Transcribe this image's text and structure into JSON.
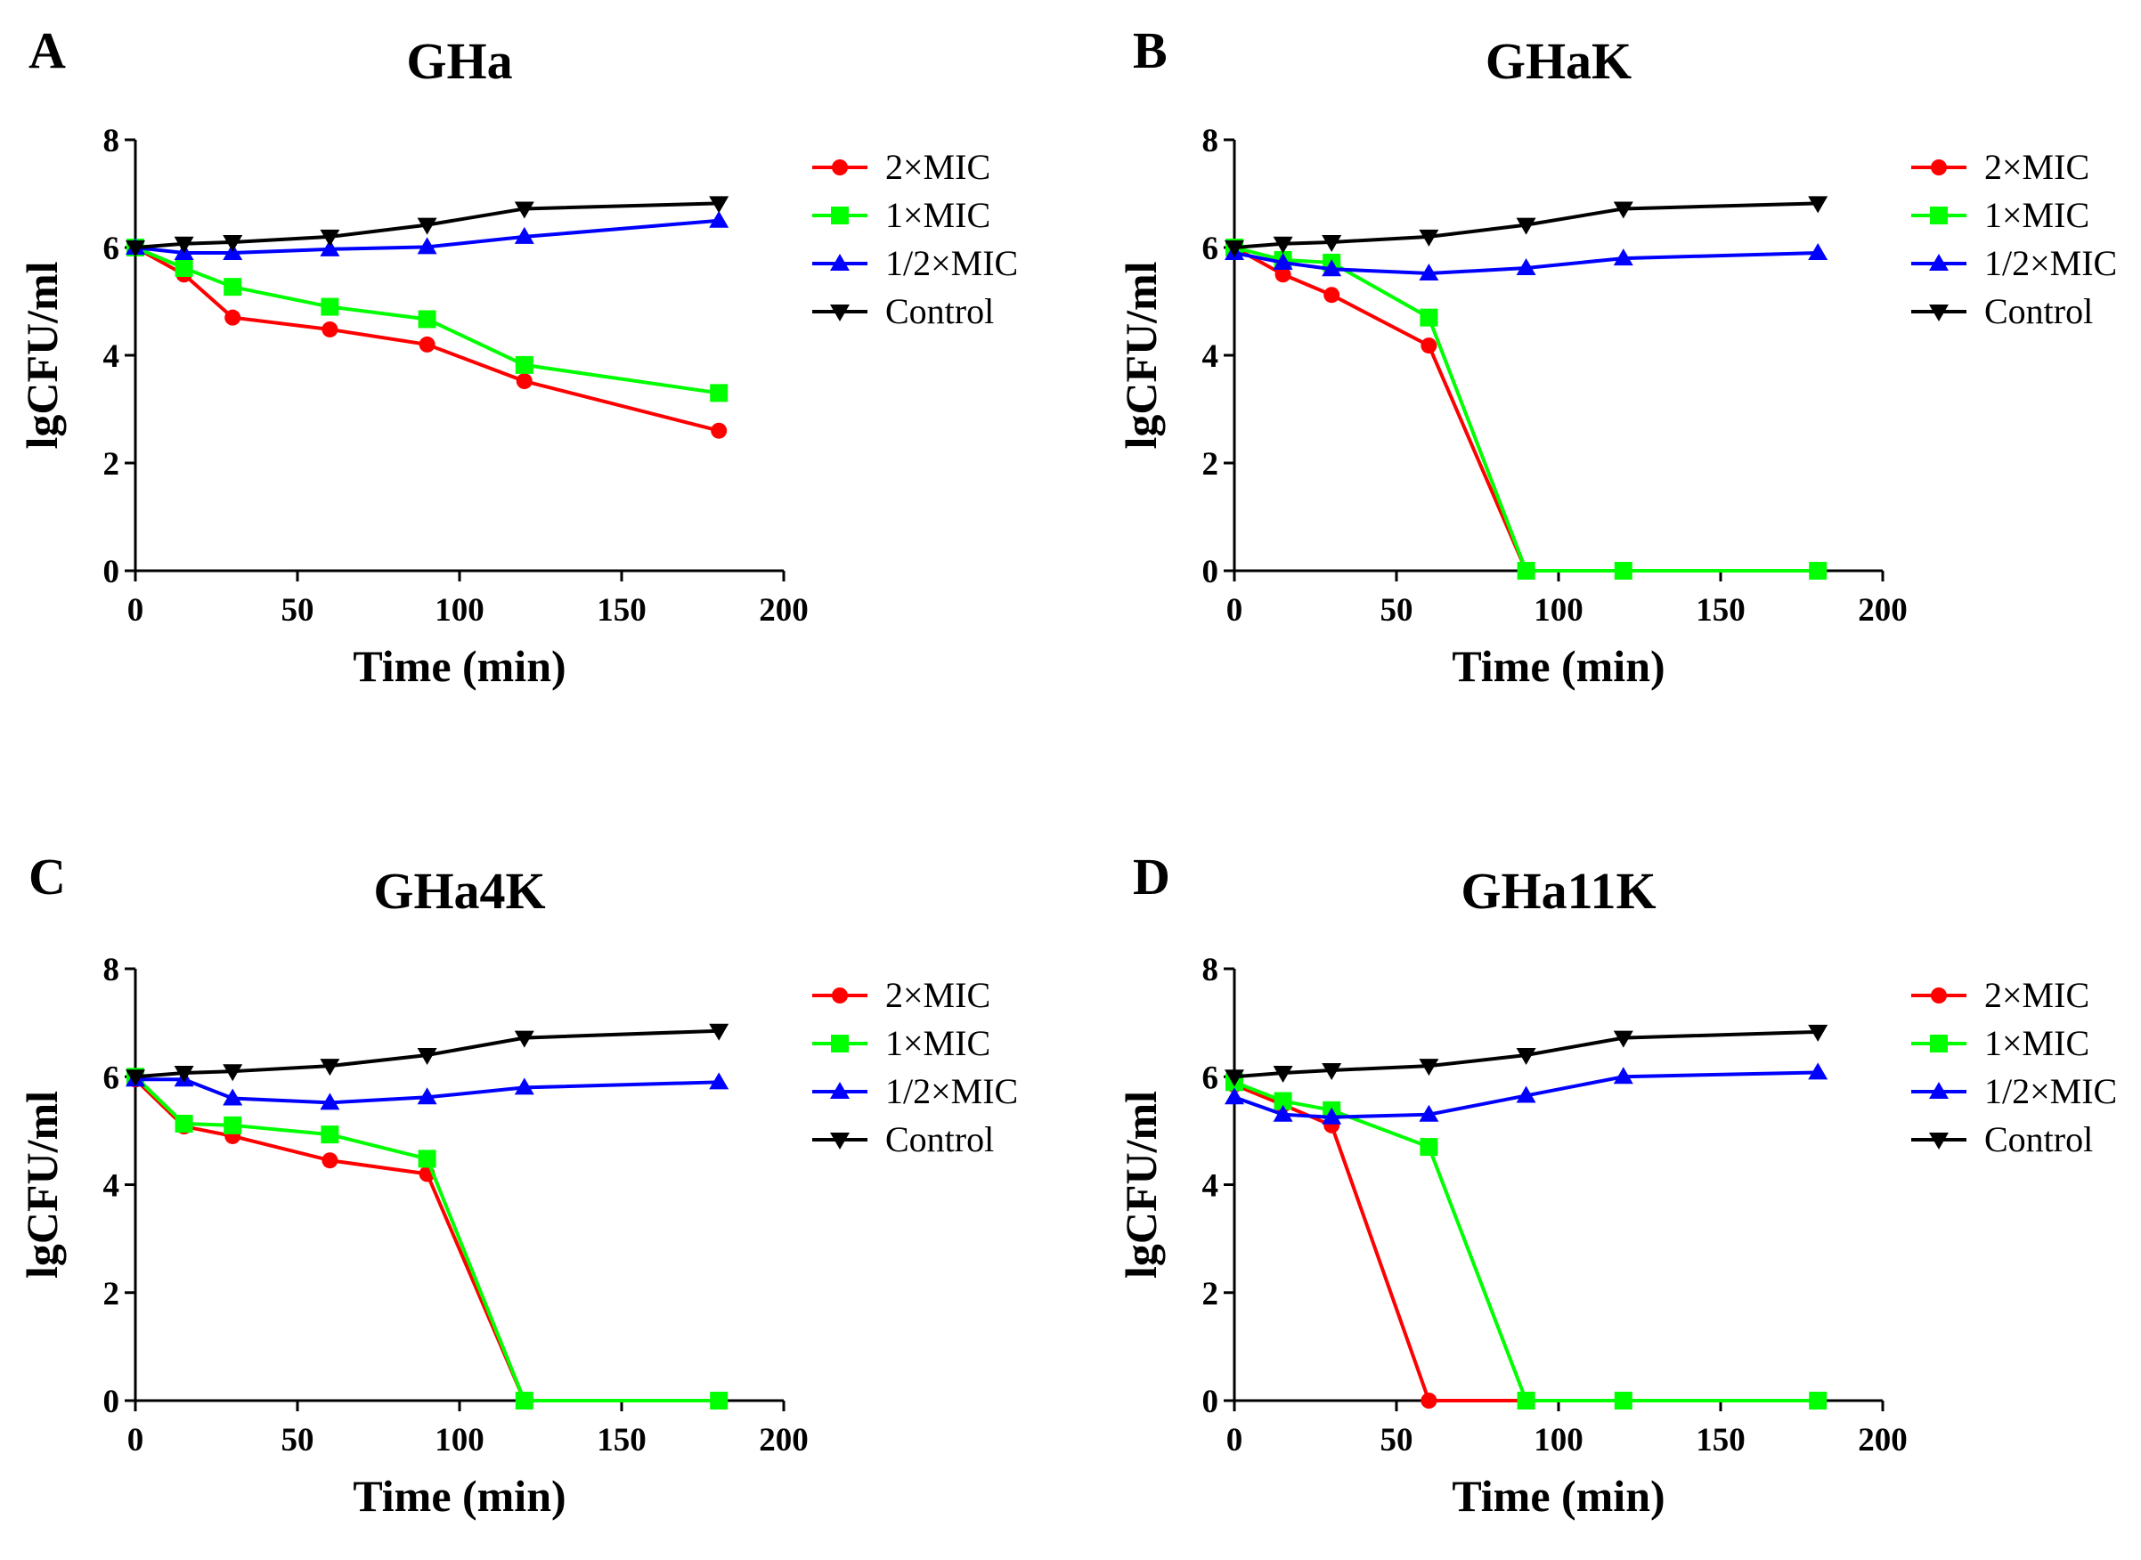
{
  "chart_data": [
    {
      "type": "line",
      "panel": "A",
      "title": "GHa",
      "xlabel": "Time (min)",
      "ylabel": "lgCFU/ml",
      "xlim": [
        0,
        200
      ],
      "ylim": [
        0,
        8
      ],
      "xticks": [
        0,
        50,
        100,
        150,
        200
      ],
      "yticks": [
        0,
        2,
        4,
        6,
        8
      ],
      "x": [
        0,
        15,
        30,
        60,
        90,
        120,
        180
      ],
      "legend_position": "top-right",
      "series": [
        {
          "name": "2×MIC",
          "color": "#ff0000",
          "marker": "circle",
          "values": [
            6.0,
            5.5,
            4.7,
            4.48,
            4.2,
            3.52,
            2.6
          ]
        },
        {
          "name": "1×MIC",
          "color": "#00ff00",
          "marker": "square",
          "values": [
            6.0,
            5.62,
            5.27,
            4.9,
            4.67,
            3.82,
            3.3
          ]
        },
        {
          "name": "1/2×MIC",
          "color": "#0000ff",
          "marker": "triangle-up",
          "values": [
            6.0,
            5.9,
            5.9,
            5.97,
            6.01,
            6.2,
            6.5
          ]
        },
        {
          "name": "Control",
          "color": "#000000",
          "marker": "triangle-down",
          "values": [
            6.0,
            6.07,
            6.1,
            6.2,
            6.42,
            6.72,
            6.82
          ]
        }
      ]
    },
    {
      "type": "line",
      "panel": "B",
      "title": "GHaK",
      "xlabel": "Time (min)",
      "ylabel": "lgCFU/ml",
      "xlim": [
        0,
        200
      ],
      "ylim": [
        0,
        8
      ],
      "xticks": [
        0,
        50,
        100,
        150,
        200
      ],
      "yticks": [
        0,
        2,
        4,
        6,
        8
      ],
      "x": [
        0,
        15,
        30,
        60,
        90,
        120,
        180
      ],
      "legend_position": "top-right",
      "series": [
        {
          "name": "2×MIC",
          "color": "#ff0000",
          "marker": "circle",
          "values": [
            6.0,
            5.5,
            5.12,
            4.18,
            0,
            0,
            0
          ]
        },
        {
          "name": "1×MIC",
          "color": "#00ff00",
          "marker": "square",
          "values": [
            6.0,
            5.77,
            5.72,
            4.7,
            0,
            0,
            0
          ]
        },
        {
          "name": "1/2×MIC",
          "color": "#0000ff",
          "marker": "triangle-up",
          "values": [
            5.9,
            5.72,
            5.6,
            5.52,
            5.62,
            5.8,
            5.9
          ]
        },
        {
          "name": "Control",
          "color": "#000000",
          "marker": "triangle-down",
          "values": [
            6.0,
            6.07,
            6.1,
            6.2,
            6.42,
            6.72,
            6.82
          ]
        }
      ]
    },
    {
      "type": "line",
      "panel": "C",
      "title": "GHa4K",
      "xlabel": "Time (min)",
      "ylabel": "lgCFU/ml",
      "xlim": [
        0,
        200
      ],
      "ylim": [
        0,
        8
      ],
      "xticks": [
        0,
        50,
        100,
        150,
        200
      ],
      "yticks": [
        0,
        2,
        4,
        6,
        8
      ],
      "x": [
        0,
        15,
        30,
        60,
        90,
        120,
        180
      ],
      "legend_position": "top-right",
      "series": [
        {
          "name": "2×MIC",
          "color": "#ff0000",
          "marker": "circle",
          "values": [
            5.95,
            5.08,
            4.9,
            4.45,
            4.2,
            0,
            0
          ]
        },
        {
          "name": "1×MIC",
          "color": "#00ff00",
          "marker": "square",
          "values": [
            6.0,
            5.13,
            5.1,
            4.93,
            4.48,
            0,
            0
          ]
        },
        {
          "name": "1/2×MIC",
          "color": "#0000ff",
          "marker": "triangle-up",
          "values": [
            5.95,
            5.95,
            5.6,
            5.52,
            5.62,
            5.8,
            5.9
          ]
        },
        {
          "name": "Control",
          "color": "#000000",
          "marker": "triangle-down",
          "values": [
            6.0,
            6.07,
            6.1,
            6.2,
            6.4,
            6.72,
            6.85
          ]
        }
      ]
    },
    {
      "type": "line",
      "panel": "D",
      "title": "GHa11K",
      "xlabel": "Time (min)",
      "ylabel": "lgCFU/ml",
      "xlim": [
        0,
        200
      ],
      "ylim": [
        0,
        8
      ],
      "xticks": [
        0,
        50,
        100,
        150,
        200
      ],
      "yticks": [
        0,
        2,
        4,
        6,
        8
      ],
      "x": [
        0,
        15,
        30,
        60,
        90,
        120,
        180
      ],
      "legend_position": "top-right",
      "series": [
        {
          "name": "2×MIC",
          "color": "#ff0000",
          "marker": "circle",
          "values": [
            5.85,
            5.48,
            5.1,
            0,
            0,
            0,
            0
          ]
        },
        {
          "name": "1×MIC",
          "color": "#00ff00",
          "marker": "square",
          "values": [
            5.9,
            5.55,
            5.38,
            4.7,
            0,
            0,
            0
          ]
        },
        {
          "name": "1/2×MIC",
          "color": "#0000ff",
          "marker": "triangle-up",
          "values": [
            5.62,
            5.3,
            5.25,
            5.3,
            5.65,
            6.0,
            6.08
          ]
        },
        {
          "name": "Control",
          "color": "#000000",
          "marker": "triangle-down",
          "values": [
            6.0,
            6.07,
            6.12,
            6.2,
            6.4,
            6.72,
            6.83
          ]
        }
      ]
    }
  ]
}
